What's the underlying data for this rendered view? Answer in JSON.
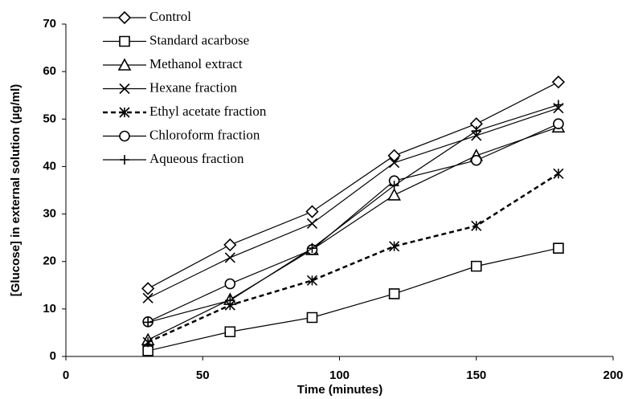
{
  "chart_data": {
    "type": "line",
    "x_label": "Time (minutes)",
    "y_label": "[Glucose] in external solution (µg/ml)",
    "x": [
      30,
      60,
      90,
      120,
      150,
      180
    ],
    "xlim": [
      0,
      200
    ],
    "xticks": [
      0,
      50,
      100,
      150,
      200
    ],
    "ylim": [
      0,
      70
    ],
    "yticks": [
      0,
      10,
      20,
      30,
      40,
      50,
      60,
      70
    ],
    "grid": false,
    "legend": "top-left",
    "series": [
      {
        "name": "Control",
        "color": "#000000",
        "marker": "diamond",
        "dashed": false,
        "values": [
          14.3,
          23.5,
          30.5,
          42.3,
          49,
          57.8
        ]
      },
      {
        "name": "Standard acarbose",
        "color": "#000000",
        "marker": "square",
        "dashed": false,
        "values": [
          1.2,
          5.2,
          8.2,
          13.2,
          19,
          22.8
        ]
      },
      {
        "name": "Methanol extract",
        "color": "#000000",
        "marker": "triangle",
        "dashed": false,
        "values": [
          3.5,
          12,
          22.5,
          34,
          42.3,
          48.3
        ]
      },
      {
        "name": "Hexane fraction",
        "color": "#000000",
        "marker": "x",
        "dashed": false,
        "values": [
          12.3,
          20.8,
          28,
          40.8,
          46.5,
          52.3
        ]
      },
      {
        "name": "Ethyl acetate fraction",
        "color": "#000000",
        "marker": "star",
        "dashed": true,
        "values": [
          3,
          10.8,
          16,
          23.2,
          27.5,
          38.5
        ]
      },
      {
        "name": "Chloroform fraction",
        "color": "#000000",
        "marker": "circle",
        "dashed": false,
        "values": [
          7.3,
          15.3,
          22.5,
          37,
          41.3,
          49
        ]
      },
      {
        "name": "Aqueous fraction",
        "color": "#000000",
        "marker": "plus",
        "dashed": false,
        "values": [
          7.2,
          11.8,
          22.8,
          36,
          47.5,
          53
        ]
      }
    ]
  }
}
